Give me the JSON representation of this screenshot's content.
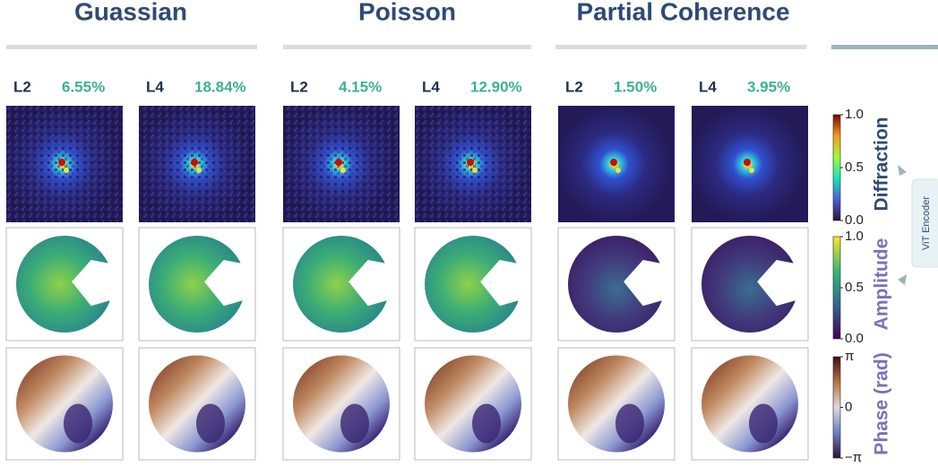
{
  "groups": [
    {
      "title": "Guassian",
      "panels": [
        {
          "loss": "L2",
          "error": "6.55%"
        },
        {
          "loss": "L4",
          "error": "18.84%"
        }
      ]
    },
    {
      "title": "Poisson",
      "panels": [
        {
          "loss": "L2",
          "error": "4.15%"
        },
        {
          "loss": "L4",
          "error": "12.90%"
        }
      ]
    },
    {
      "title": "Partial Coherence",
      "panels": [
        {
          "loss": "L2",
          "error": "1.50%"
        },
        {
          "loss": "L4",
          "error": "3.95%"
        }
      ]
    }
  ],
  "rows": [
    {
      "label": "Diffraction",
      "ticks": [
        "1.0",
        "0.5",
        "0.0"
      ]
    },
    {
      "label": "Amplitude",
      "ticks": [
        "1.0",
        "0.5",
        "0.0"
      ]
    },
    {
      "label": "Phase (rad)",
      "ticks": [
        "π",
        "0",
        "−π"
      ]
    }
  ],
  "encoder": "ViT Encoder"
}
